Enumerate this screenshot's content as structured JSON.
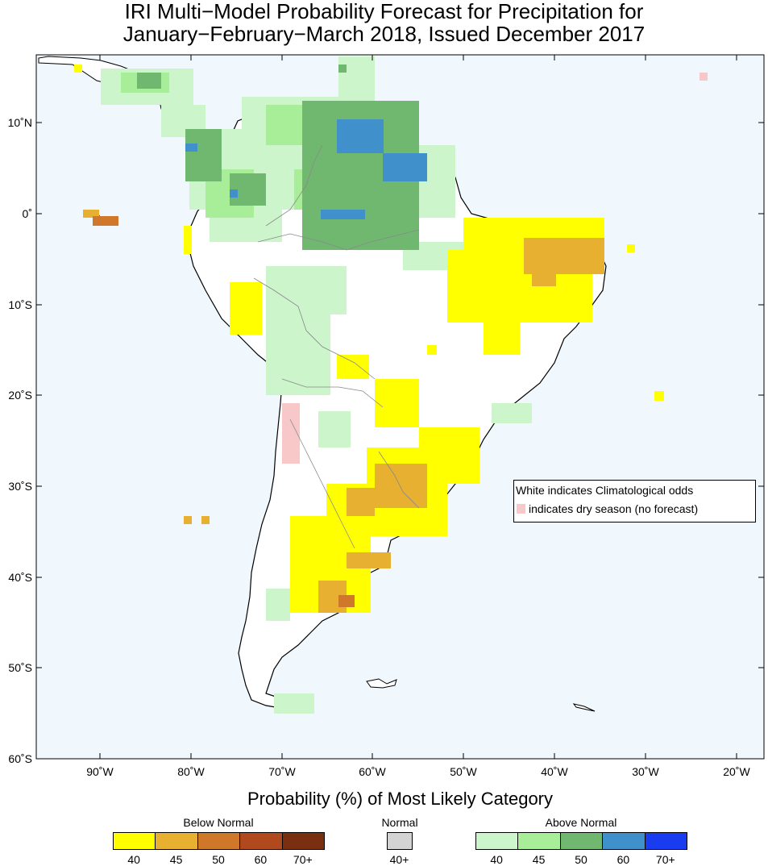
{
  "title": {
    "line1": "IRI Multi−Model Probability Forecast for Precipitation for",
    "line2": "January−February−March 2018, Issued December 2017"
  },
  "map": {
    "ocean_color": "#f0f8fd",
    "land_color": "#ffffff",
    "lat_labels": [
      "10˚N",
      "0˚",
      "10˚S",
      "20˚S",
      "30˚S",
      "40˚S",
      "50˚S",
      "60˚S"
    ],
    "lon_labels": [
      "90˚W",
      "80˚W",
      "70˚W",
      "60˚W",
      "50˚W",
      "40˚W",
      "30˚W",
      "20˚W"
    ]
  },
  "legend": {
    "climatology_text": "White indicates Climatological odds",
    "dry_season_text": "indicates dry season (no forecast)",
    "dry_season_color": "#f8c8c8"
  },
  "colorbar": {
    "title": "Probability (%) of Most Likely Category",
    "below": {
      "label": "Below Normal",
      "items": [
        {
          "label": "40",
          "color": "#ffff00"
        },
        {
          "label": "45",
          "color": "#e8b030"
        },
        {
          "label": "50",
          "color": "#d0782a"
        },
        {
          "label": "60",
          "color": "#b04a1e"
        },
        {
          "label": "70+",
          "color": "#7a3010"
        }
      ]
    },
    "normal": {
      "label": "Normal",
      "items": [
        {
          "label": "40+",
          "color": "#d3d3d3"
        }
      ]
    },
    "above": {
      "label": "Above Normal",
      "items": [
        {
          "label": "40",
          "color": "#ccf5cc"
        },
        {
          "label": "45",
          "color": "#a8ee98"
        },
        {
          "label": "50",
          "color": "#70b870"
        },
        {
          "label": "60",
          "color": "#4090cc"
        },
        {
          "label": "70+",
          "color": "#1a3cf0"
        }
      ]
    }
  }
}
